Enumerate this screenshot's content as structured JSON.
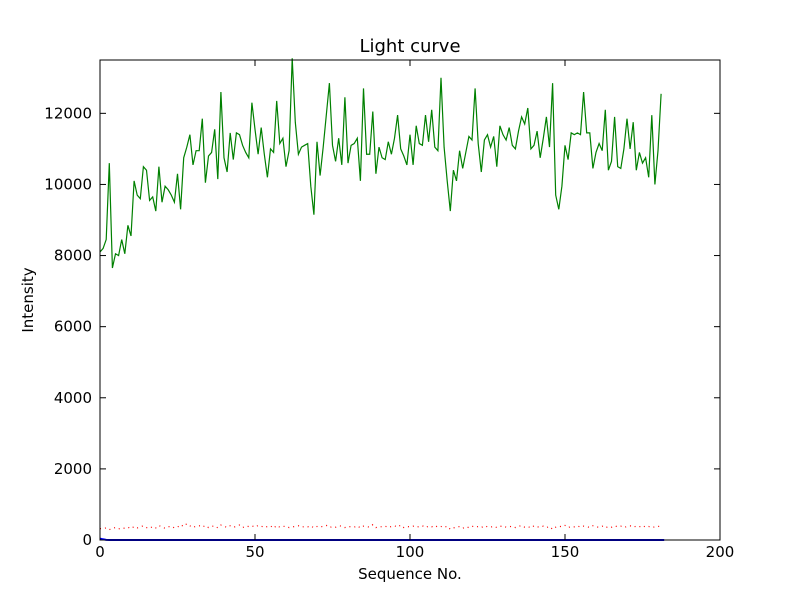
{
  "chart_data": {
    "type": "line",
    "title": "Light curve",
    "xlabel": "Sequence No.",
    "ylabel": "Intensity",
    "xlim": [
      0,
      200
    ],
    "ylim": [
      0,
      13500
    ],
    "xticks": [
      0,
      50,
      100,
      150,
      200
    ],
    "yticks": [
      0,
      2000,
      4000,
      6000,
      8000,
      10000,
      12000
    ],
    "grid": false,
    "legend": "none",
    "series": [
      {
        "color": "#008000",
        "style": "solid",
        "values": [
          8100,
          8200,
          8450,
          10600,
          7650,
          8050,
          8000,
          8450,
          8050,
          8850,
          8550,
          10100,
          9700,
          9600,
          10500,
          10400,
          9550,
          9650,
          9250,
          10500,
          9500,
          9950,
          9850,
          9700,
          9500,
          10300,
          9300,
          10750,
          11050,
          11400,
          10550,
          10950,
          10950,
          11850,
          10050,
          10800,
          10900,
          11550,
          10150,
          12600,
          10750,
          10350,
          11450,
          10700,
          11450,
          11400,
          11100,
          10900,
          10750,
          12300,
          11550,
          10850,
          11600,
          10850,
          10200,
          11000,
          10900,
          12350,
          11150,
          11300,
          10500,
          10950,
          13550,
          11750,
          10850,
          11050,
          11100,
          11150,
          9950,
          9150,
          11200,
          10250,
          11050,
          11950,
          12850,
          11100,
          10650,
          11300,
          10550,
          12450,
          10600,
          11100,
          11150,
          11300,
          10100,
          12700,
          10850,
          10850,
          12050,
          10300,
          11050,
          10750,
          10700,
          11200,
          10850,
          11300,
          11950,
          11000,
          10800,
          10550,
          11400,
          10550,
          11650,
          11150,
          11100,
          11950,
          11200,
          12100,
          11050,
          10950,
          13000,
          11050,
          10100,
          9250,
          10400,
          10100,
          10950,
          10450,
          10900,
          11350,
          11250,
          12700,
          11150,
          10350,
          11250,
          11400,
          11050,
          11350,
          10500,
          11650,
          11400,
          11250,
          11600,
          11100,
          11000,
          11500,
          11900,
          11700,
          12150,
          11000,
          11100,
          11500,
          10750,
          11300,
          11900,
          11050,
          12850,
          9700,
          9300,
          9950,
          11100,
          10700,
          11450,
          11400,
          11450,
          11400,
          12600,
          11450,
          11450,
          10450,
          10900,
          11150,
          10950,
          12100,
          10400,
          10650,
          11900,
          10500,
          10450,
          11000,
          11850,
          11000,
          11750,
          10400,
          10900,
          10600,
          10750,
          10200,
          11950,
          10000,
          10950,
          12550
        ]
      },
      {
        "color": "#ff0000",
        "style": "dotted",
        "values": [
          320,
          320,
          340,
          290,
          330,
          350,
          310,
          340,
          330,
          360,
          320,
          380,
          340,
          370,
          400,
          350,
          330,
          380,
          340,
          410,
          360,
          330,
          370,
          390,
          340,
          360,
          430,
          380,
          460,
          400,
          350,
          390,
          400,
          360,
          410,
          350,
          380,
          400,
          340,
          420,
          390,
          350,
          400,
          360,
          380,
          420,
          350,
          390,
          380,
          400,
          360,
          410,
          390,
          350,
          380,
          400,
          330,
          410,
          360,
          380,
          390,
          350,
          370,
          380,
          400,
          360,
          380,
          370,
          400,
          340,
          380,
          360,
          390,
          410,
          350,
          380,
          360,
          400,
          390,
          350,
          380,
          370,
          360,
          400,
          340,
          390,
          380,
          360,
          430,
          350,
          380,
          370,
          390,
          350,
          380,
          400,
          360,
          420,
          350,
          380,
          370,
          390,
          360,
          380,
          400,
          350,
          390,
          370,
          410,
          360,
          380,
          350,
          390,
          300,
          340,
          360,
          380,
          330,
          370,
          350,
          390,
          360,
          380,
          350,
          400,
          370,
          360,
          390,
          350,
          380,
          400,
          360,
          370,
          390,
          350,
          380,
          410,
          360,
          380,
          340,
          400,
          370,
          360,
          390,
          350,
          380,
          300,
          360,
          390,
          370,
          410,
          350,
          380,
          370,
          400,
          360,
          390,
          380,
          350,
          400,
          370,
          360,
          390,
          340,
          380,
          360,
          400,
          370,
          390,
          350,
          380,
          400,
          360,
          390,
          370,
          410,
          360,
          380,
          350,
          370,
          390,
          360
        ]
      },
      {
        "color": "#0000ff",
        "style": "solid",
        "values": [
          40,
          20,
          5,
          0,
          0,
          0,
          0,
          0,
          0,
          0,
          0,
          0,
          0,
          0,
          0,
          0,
          0,
          0,
          0,
          0,
          0,
          0,
          0,
          0,
          0,
          0,
          0,
          0,
          0,
          0,
          0,
          0,
          0,
          0,
          0,
          0,
          0,
          0,
          0,
          0,
          0,
          0,
          0,
          0,
          0,
          0,
          0,
          0,
          0,
          0,
          0,
          0,
          0,
          0,
          0,
          0,
          0,
          0,
          0,
          0,
          0,
          0,
          0,
          0,
          0,
          0,
          0,
          0,
          0,
          0,
          0,
          0,
          0,
          0,
          0,
          0,
          0,
          0,
          0,
          0,
          0,
          0,
          0,
          0,
          0,
          0,
          0,
          0,
          0,
          0,
          0,
          0,
          0,
          0,
          0,
          0,
          0,
          0,
          0,
          0,
          0,
          0,
          0,
          0,
          0,
          0,
          0,
          0,
          0,
          0,
          0,
          0,
          0,
          0,
          0,
          0,
          0,
          0,
          0,
          0,
          0,
          0,
          0,
          0,
          0,
          0,
          0,
          0,
          0,
          0,
          0,
          0,
          0,
          0,
          0,
          0,
          0,
          0,
          0,
          0,
          0,
          0,
          0,
          0,
          0,
          0,
          0,
          0,
          0,
          0,
          0,
          0,
          0,
          0,
          0,
          0,
          0,
          0,
          0,
          0,
          0,
          0,
          0,
          0,
          0,
          0,
          0,
          0,
          0,
          0,
          0,
          0,
          0,
          0,
          0,
          0,
          0,
          0,
          0,
          0,
          0,
          0,
          0
        ]
      }
    ]
  }
}
